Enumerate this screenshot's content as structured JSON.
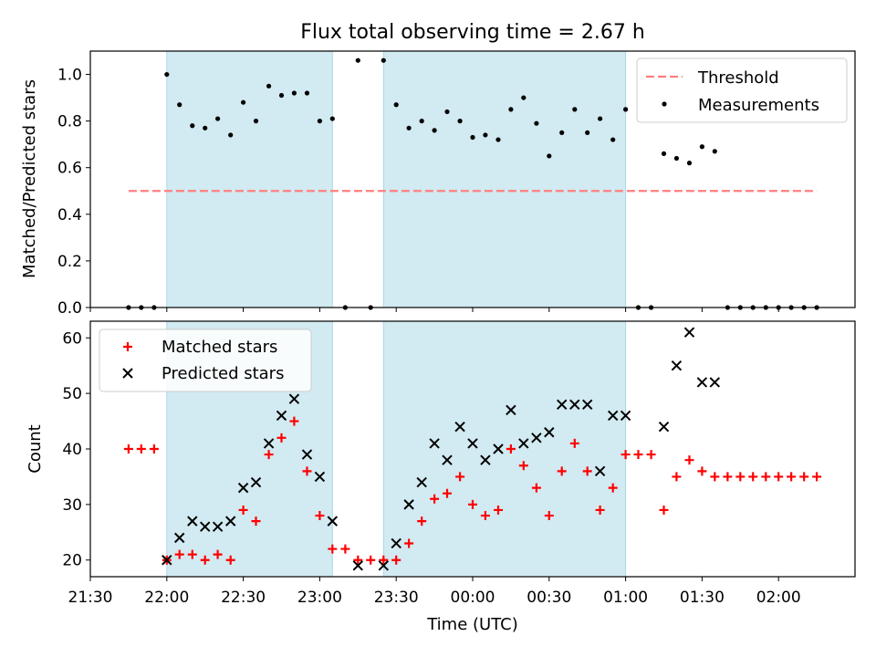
{
  "title": "Flux total observing time = 2.67 h",
  "colors": {
    "band": "#add8e6",
    "threshold": "#ff7f7f",
    "measurement": "#000000",
    "matched": "#ff0000",
    "predicted": "#000000"
  },
  "chart_data": [
    {
      "type": "scatter",
      "ylabel": "Matched/Predicted stars",
      "xlim": [
        -0.5,
        4.5
      ],
      "ylim": [
        0,
        1.1
      ],
      "yticks": [
        "0.0",
        "0.2",
        "0.4",
        "0.6",
        "0.8",
        "1.0"
      ],
      "ytick_values": [
        0,
        0.2,
        0.4,
        0.6,
        0.8,
        1.0
      ],
      "shaded_intervals": [
        [
          -0.0,
          1.083
        ],
        [
          1.417,
          3.0
        ]
      ],
      "legend": {
        "placement": "top-right",
        "entries": [
          {
            "label": "Threshold"
          },
          {
            "label": "Measurements"
          }
        ]
      },
      "threshold": {
        "name": "Threshold",
        "y": 0.5,
        "x": [
          -0.25,
          4.25
        ]
      },
      "series": [
        {
          "name": "Measurements",
          "x": [
            -0.25,
            -0.167,
            -0.083,
            0.0,
            0.083,
            0.167,
            0.25,
            0.333,
            0.417,
            0.5,
            0.583,
            0.667,
            0.75,
            0.833,
            0.917,
            1.0,
            1.083,
            1.167,
            1.25,
            1.333,
            1.417,
            1.5,
            1.583,
            1.667,
            1.75,
            1.833,
            1.917,
            2.0,
            2.083,
            2.167,
            2.25,
            2.333,
            2.417,
            2.5,
            2.583,
            2.667,
            2.75,
            2.833,
            2.917,
            3.0,
            3.083,
            3.167,
            3.25,
            3.333,
            3.417,
            3.5,
            3.583,
            3.667,
            3.75,
            3.833,
            3.917,
            4.0,
            4.083,
            4.167,
            4.25
          ],
          "y": [
            0,
            0,
            0,
            1.0,
            0.87,
            0.78,
            0.77,
            0.81,
            0.74,
            0.88,
            0.8,
            0.95,
            0.91,
            0.92,
            0.92,
            0.8,
            0.81,
            0,
            1.06,
            0,
            1.06,
            0.87,
            0.77,
            0.8,
            0.76,
            0.84,
            0.8,
            0.73,
            0.74,
            0.72,
            0.85,
            0.9,
            0.79,
            0.65,
            0.75,
            0.85,
            0.75,
            0.81,
            0.72,
            0.85,
            0,
            0,
            0.66,
            0.64,
            0.62,
            0.69,
            0.67,
            0,
            0,
            0,
            0,
            0,
            0,
            0,
            0
          ]
        }
      ]
    },
    {
      "type": "scatter",
      "xlabel": "Time (UTC)",
      "ylabel": "Count",
      "xlim": [
        -0.5,
        4.5
      ],
      "ylim": [
        17,
        63
      ],
      "yticks": [
        "20",
        "30",
        "40",
        "50",
        "60"
      ],
      "ytick_values": [
        20,
        30,
        40,
        50,
        60
      ],
      "xticks": [
        "21:30",
        "22:00",
        "22:30",
        "23:00",
        "23:30",
        "00:00",
        "00:30",
        "01:00",
        "01:30",
        "02:00"
      ],
      "xtick_values": [
        -0.5,
        0.0,
        0.5,
        1.0,
        1.5,
        2.0,
        2.5,
        3.0,
        3.5,
        4.0
      ],
      "shaded_intervals": [
        [
          -0.0,
          1.083
        ],
        [
          1.417,
          3.0
        ]
      ],
      "legend": {
        "placement": "top-left",
        "entries": [
          {
            "label": "Matched stars"
          },
          {
            "label": "Predicted stars"
          }
        ]
      },
      "series": [
        {
          "name": "Matched stars",
          "x": [
            -0.25,
            -0.167,
            -0.083,
            0.0,
            0.083,
            0.167,
            0.25,
            0.333,
            0.417,
            0.5,
            0.583,
            0.667,
            0.75,
            0.833,
            0.917,
            1.0,
            1.083,
            1.167,
            1.25,
            1.333,
            1.417,
            1.5,
            1.583,
            1.667,
            1.75,
            1.833,
            1.917,
            2.0,
            2.083,
            2.167,
            2.25,
            2.333,
            2.417,
            2.5,
            2.583,
            2.667,
            2.75,
            2.833,
            2.917,
            3.0,
            3.083,
            3.167,
            3.25,
            3.333,
            3.417,
            3.5,
            3.583,
            3.667,
            3.75,
            3.833,
            3.917,
            4.0,
            4.083,
            4.167,
            4.25
          ],
          "y": [
            40,
            40,
            40,
            20,
            21,
            21,
            20,
            21,
            20,
            29,
            27,
            39,
            42,
            45,
            36,
            28,
            22,
            22,
            20,
            20,
            20,
            20,
            23,
            27,
            31,
            32,
            35,
            30,
            28,
            29,
            40,
            37,
            33,
            28,
            36,
            41,
            36,
            29,
            33,
            39,
            39,
            39,
            29,
            35,
            38,
            36,
            35,
            35,
            35,
            35,
            35,
            35,
            35,
            35,
            35
          ]
        },
        {
          "name": "Predicted stars",
          "x": [
            0.0,
            0.083,
            0.167,
            0.25,
            0.333,
            0.417,
            0.5,
            0.583,
            0.667,
            0.75,
            0.833,
            0.917,
            1.0,
            1.083,
            1.25,
            1.417,
            1.5,
            1.583,
            1.667,
            1.75,
            1.833,
            1.917,
            2.0,
            2.083,
            2.167,
            2.25,
            2.333,
            2.417,
            2.5,
            2.583,
            2.667,
            2.75,
            2.833,
            2.917,
            3.0,
            3.25,
            3.333,
            3.417,
            3.5,
            3.583
          ],
          "y": [
            20,
            24,
            27,
            26,
            26,
            27,
            33,
            34,
            41,
            46,
            49,
            39,
            35,
            27,
            19,
            19,
            23,
            30,
            34,
            41,
            38,
            44,
            41,
            38,
            40,
            47,
            41,
            42,
            43,
            48,
            48,
            48,
            36,
            46,
            46,
            44,
            55,
            61,
            52,
            52
          ]
        }
      ]
    }
  ]
}
